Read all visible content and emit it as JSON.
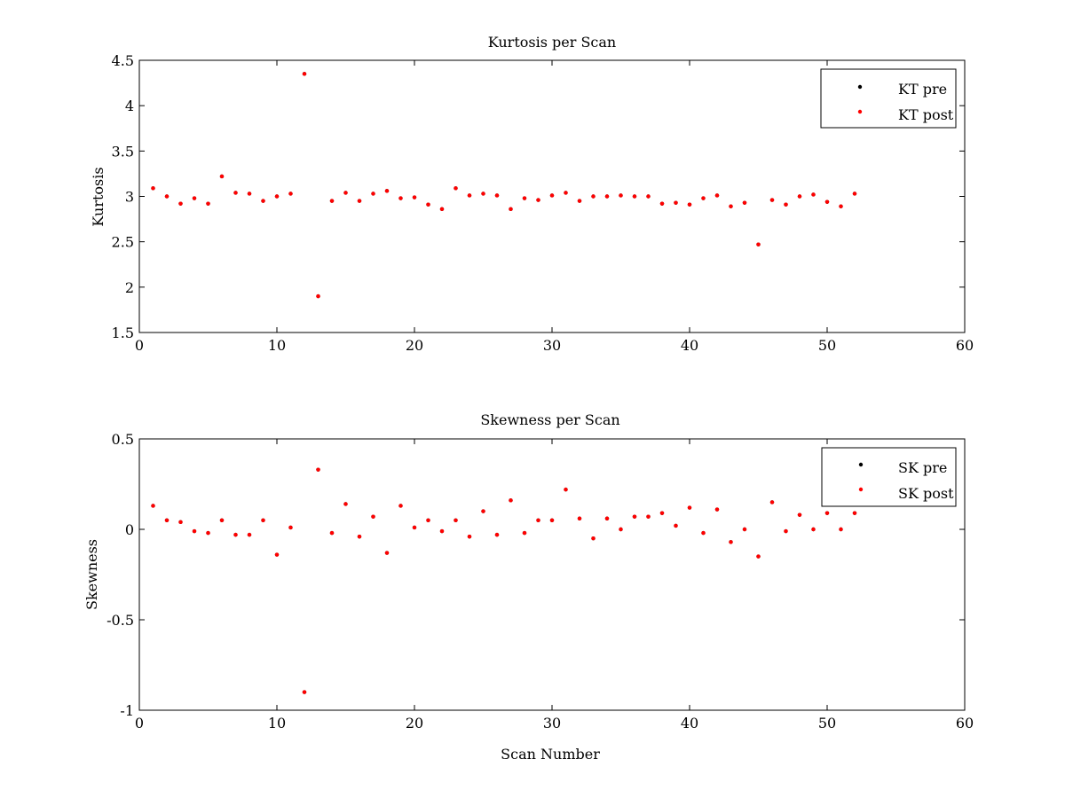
{
  "chart_data": [
    {
      "type": "scatter",
      "title": "Kurtosis per Scan",
      "xlabel": "",
      "ylabel": "Kurtosis",
      "xlim": [
        0,
        60
      ],
      "ylim": [
        1.5,
        4.5
      ],
      "x_ticks": [
        0,
        10,
        20,
        30,
        40,
        50,
        60
      ],
      "y_ticks": [
        1.5,
        2,
        2.5,
        3,
        3.5,
        4,
        4.5
      ],
      "x_tick_labels": [
        "0",
        "10",
        "20",
        "30",
        "40",
        "50",
        "60"
      ],
      "y_tick_labels": [
        "1.5",
        "2",
        "2.5",
        "3",
        "3.5",
        "4",
        "4.5"
      ],
      "grid": false,
      "legend_position": "top-right",
      "series": [
        {
          "name": "KT pre",
          "color": "#000000",
          "x": [
            1,
            2,
            3,
            4,
            5,
            6,
            7,
            8,
            9,
            10,
            11,
            12,
            13,
            14,
            15,
            16,
            17,
            18,
            19,
            20,
            21,
            22,
            23,
            24,
            25,
            26,
            27,
            28,
            29,
            30,
            31,
            32,
            33,
            34,
            35,
            36,
            37,
            38,
            39,
            40,
            41,
            42,
            43,
            44,
            45,
            46,
            47,
            48,
            49,
            50,
            51,
            52
          ],
          "y": [
            3.09,
            3.0,
            2.92,
            2.98,
            2.92,
            3.22,
            3.04,
            3.03,
            2.95,
            3.0,
            3.03,
            4.35,
            1.9,
            2.95,
            3.04,
            2.95,
            3.03,
            3.06,
            2.98,
            2.99,
            2.91,
            2.86,
            3.09,
            3.01,
            3.03,
            3.01,
            2.86,
            2.98,
            2.96,
            3.01,
            3.04,
            2.95,
            3.0,
            3.0,
            3.01,
            3.0,
            3.0,
            2.92,
            2.93,
            2.91,
            2.98,
            3.01,
            2.89,
            2.93,
            2.47,
            2.96,
            2.91,
            3.0,
            3.02,
            2.94,
            2.89,
            3.03
          ]
        },
        {
          "name": "KT post",
          "color": "#ff0000",
          "x": [
            1,
            2,
            3,
            4,
            5,
            6,
            7,
            8,
            9,
            10,
            11,
            12,
            13,
            14,
            15,
            16,
            17,
            18,
            19,
            20,
            21,
            22,
            23,
            24,
            25,
            26,
            27,
            28,
            29,
            30,
            31,
            32,
            33,
            34,
            35,
            36,
            37,
            38,
            39,
            40,
            41,
            42,
            43,
            44,
            45,
            46,
            47,
            48,
            49,
            50,
            51,
            52
          ],
          "y": [
            3.09,
            3.0,
            2.92,
            2.98,
            2.92,
            3.22,
            3.04,
            3.03,
            2.95,
            3.0,
            3.03,
            4.35,
            1.9,
            2.95,
            3.04,
            2.95,
            3.03,
            3.06,
            2.98,
            2.99,
            2.91,
            2.86,
            3.09,
            3.01,
            3.03,
            3.01,
            2.86,
            2.98,
            2.96,
            3.01,
            3.04,
            2.95,
            3.0,
            3.0,
            3.01,
            3.0,
            3.0,
            2.92,
            2.93,
            2.91,
            2.98,
            3.01,
            2.89,
            2.93,
            2.47,
            2.96,
            2.91,
            3.0,
            3.02,
            2.94,
            2.89,
            3.03
          ]
        }
      ]
    },
    {
      "type": "scatter",
      "title": "Skewness per Scan",
      "xlabel": "Scan Number",
      "ylabel": "Skewness",
      "xlim": [
        0,
        60
      ],
      "ylim": [
        -1,
        0.5
      ],
      "x_ticks": [
        0,
        10,
        20,
        30,
        40,
        50,
        60
      ],
      "y_ticks": [
        -1,
        -0.5,
        0,
        0.5
      ],
      "x_tick_labels": [
        "0",
        "10",
        "20",
        "30",
        "40",
        "50",
        "60"
      ],
      "y_tick_labels": [
        "-1",
        "-0.5",
        "0",
        "0.5"
      ],
      "grid": false,
      "legend_position": "top-right",
      "series": [
        {
          "name": "SK pre",
          "color": "#000000",
          "x": [
            1,
            2,
            3,
            4,
            5,
            6,
            7,
            8,
            9,
            10,
            11,
            12,
            13,
            14,
            15,
            16,
            17,
            18,
            19,
            20,
            21,
            22,
            23,
            24,
            25,
            26,
            27,
            28,
            29,
            30,
            31,
            32,
            33,
            34,
            35,
            36,
            37,
            38,
            39,
            40,
            41,
            42,
            43,
            44,
            45,
            46,
            47,
            48,
            49,
            50,
            51,
            52
          ],
          "y": [
            0.13,
            0.05,
            0.04,
            -0.01,
            -0.02,
            0.05,
            -0.03,
            -0.03,
            0.05,
            -0.14,
            0.01,
            -0.9,
            0.33,
            -0.02,
            0.14,
            -0.04,
            0.07,
            -0.13,
            0.13,
            0.01,
            0.05,
            -0.01,
            0.05,
            -0.04,
            0.1,
            -0.03,
            0.16,
            -0.02,
            0.05,
            0.05,
            0.22,
            0.06,
            -0.05,
            0.06,
            0.0,
            0.07,
            0.07,
            0.09,
            0.02,
            0.12,
            -0.02,
            0.11,
            -0.07,
            0.0,
            -0.15,
            0.15,
            -0.01,
            0.08,
            0.0,
            0.09,
            0.0,
            0.09
          ]
        },
        {
          "name": "SK post",
          "color": "#ff0000",
          "x": [
            1,
            2,
            3,
            4,
            5,
            6,
            7,
            8,
            9,
            10,
            11,
            12,
            13,
            14,
            15,
            16,
            17,
            18,
            19,
            20,
            21,
            22,
            23,
            24,
            25,
            26,
            27,
            28,
            29,
            30,
            31,
            32,
            33,
            34,
            35,
            36,
            37,
            38,
            39,
            40,
            41,
            42,
            43,
            44,
            45,
            46,
            47,
            48,
            49,
            50,
            51,
            52
          ],
          "y": [
            0.13,
            0.05,
            0.04,
            -0.01,
            -0.02,
            0.05,
            -0.03,
            -0.03,
            0.05,
            -0.14,
            0.01,
            -0.9,
            0.33,
            -0.02,
            0.14,
            -0.04,
            0.07,
            -0.13,
            0.13,
            0.01,
            0.05,
            -0.01,
            0.05,
            -0.04,
            0.1,
            -0.03,
            0.16,
            -0.02,
            0.05,
            0.05,
            0.22,
            0.06,
            -0.05,
            0.06,
            0.0,
            0.07,
            0.07,
            0.09,
            0.02,
            0.12,
            -0.02,
            0.11,
            -0.07,
            0.0,
            -0.15,
            0.15,
            -0.01,
            0.08,
            0.0,
            0.09,
            0.0,
            0.09
          ]
        }
      ]
    }
  ]
}
